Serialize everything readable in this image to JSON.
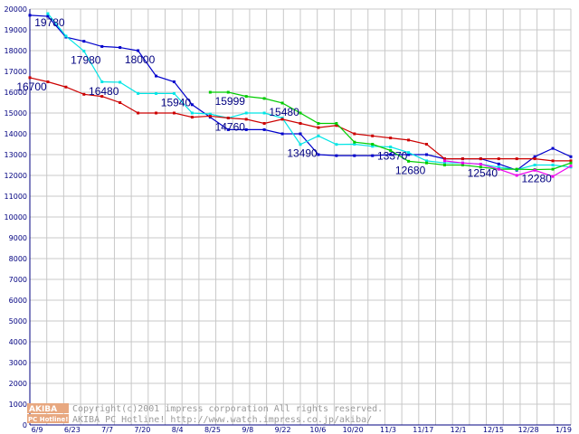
{
  "chart_data": {
    "type": "line",
    "title": "",
    "xlabel": "",
    "ylabel": "",
    "ylim": [
      0,
      20000
    ],
    "yticks": [
      0,
      1000,
      2000,
      3000,
      4000,
      5000,
      6000,
      7000,
      8000,
      9000,
      10000,
      11000,
      12000,
      13000,
      14000,
      15000,
      16000,
      17000,
      18000,
      19000,
      20000
    ],
    "grid": true,
    "categories": [
      "6/9",
      "6/23",
      "7/7",
      "7/20",
      "8/4",
      "8/25",
      "9/8",
      "9/22",
      "10/6",
      "10/20",
      "11/3",
      "11/17",
      "12/1",
      "12/15",
      "12/28",
      "1/19"
    ],
    "series": [
      {
        "color": "#0000cc",
        "values": [
          [
            0,
            19700
          ],
          [
            1,
            19650
          ],
          [
            2,
            18650
          ],
          [
            3,
            18450
          ],
          [
            4,
            18200
          ],
          [
            5,
            18150
          ],
          [
            6,
            18000
          ],
          [
            7,
            16780
          ],
          [
            8,
            16500
          ],
          [
            9,
            15400
          ],
          [
            10,
            14800
          ],
          [
            11,
            14200
          ],
          [
            12,
            14200
          ],
          [
            13,
            14200
          ],
          [
            14,
            14000
          ],
          [
            15,
            14000
          ],
          [
            16,
            13000
          ],
          [
            17,
            12950
          ],
          [
            18,
            12950
          ],
          [
            19,
            12950
          ],
          [
            20,
            13000
          ],
          [
            21,
            13000
          ],
          [
            22,
            13000
          ],
          [
            23,
            12800
          ],
          [
            24,
            12800
          ],
          [
            25,
            12800
          ],
          [
            26,
            12550
          ],
          [
            27,
            12250
          ],
          [
            28,
            12900
          ],
          [
            29,
            13300
          ],
          [
            30,
            12900
          ]
        ]
      },
      {
        "color": "#00e5e5",
        "values": [
          [
            1,
            19780
          ],
          [
            2,
            18700
          ],
          [
            3,
            17980
          ],
          [
            4,
            16500
          ],
          [
            5,
            16480
          ],
          [
            6,
            15940
          ],
          [
            7,
            15940
          ],
          [
            8,
            15940
          ],
          [
            9,
            15000
          ],
          [
            10,
            14950
          ],
          [
            11,
            14760
          ],
          [
            12,
            15000
          ],
          [
            13,
            15000
          ],
          [
            14,
            14760
          ],
          [
            15,
            13490
          ],
          [
            16,
            13900
          ],
          [
            17,
            13490
          ],
          [
            18,
            13500
          ],
          [
            19,
            13400
          ],
          [
            20,
            13370
          ],
          [
            21,
            13100
          ],
          [
            22,
            12700
          ],
          [
            23,
            12600
          ],
          [
            24,
            12600
          ],
          [
            25,
            12540
          ],
          [
            26,
            12400
          ],
          [
            27,
            12280
          ],
          [
            28,
            12500
          ],
          [
            29,
            12500
          ],
          [
            30,
            12400
          ]
        ]
      },
      {
        "color": "#cc0000",
        "values": [
          [
            0,
            16700
          ],
          [
            1,
            16500
          ],
          [
            2,
            16250
          ],
          [
            3,
            15900
          ],
          [
            4,
            15800
          ],
          [
            5,
            15500
          ],
          [
            6,
            15000
          ],
          [
            7,
            15000
          ],
          [
            8,
            15000
          ],
          [
            9,
            14800
          ],
          [
            10,
            14850
          ],
          [
            11,
            14760
          ],
          [
            12,
            14700
          ],
          [
            13,
            14500
          ],
          [
            14,
            14700
          ],
          [
            15,
            14500
          ],
          [
            16,
            14300
          ],
          [
            17,
            14400
          ],
          [
            18,
            14000
          ],
          [
            19,
            13900
          ],
          [
            20,
            13800
          ],
          [
            21,
            13700
          ],
          [
            22,
            13500
          ],
          [
            23,
            12800
          ],
          [
            24,
            12800
          ],
          [
            25,
            12800
          ],
          [
            26,
            12800
          ],
          [
            27,
            12800
          ],
          [
            28,
            12800
          ],
          [
            29,
            12700
          ],
          [
            30,
            12700
          ]
        ]
      },
      {
        "color": "#00cc00",
        "values": [
          [
            10,
            15999
          ],
          [
            11,
            15999
          ],
          [
            12,
            15800
          ],
          [
            13,
            15700
          ],
          [
            14,
            15480
          ],
          [
            15,
            15000
          ],
          [
            16,
            14500
          ],
          [
            17,
            14500
          ],
          [
            18,
            13600
          ],
          [
            19,
            13500
          ],
          [
            20,
            13200
          ],
          [
            21,
            12680
          ],
          [
            22,
            12600
          ],
          [
            23,
            12500
          ],
          [
            24,
            12500
          ],
          [
            25,
            12400
          ],
          [
            26,
            12300
          ],
          [
            27,
            12300
          ],
          [
            28,
            12280
          ],
          [
            29,
            12300
          ],
          [
            30,
            12600
          ]
        ]
      },
      {
        "color": "#ee00ee",
        "values": [
          [
            23,
            12700
          ],
          [
            24,
            12600
          ],
          [
            25,
            12540
          ],
          [
            26,
            12300
          ],
          [
            27,
            12000
          ],
          [
            28,
            12250
          ],
          [
            29,
            11950
          ],
          [
            30,
            12450
          ]
        ]
      }
    ],
    "annotations": [
      {
        "text": "19780",
        "x": 1,
        "y": 19780
      },
      {
        "text": "17980",
        "x": 3,
        "y": 17980
      },
      {
        "text": "18000",
        "x": 6,
        "y": 18000
      },
      {
        "text": "16700",
        "x": 0,
        "y": 16700
      },
      {
        "text": "16480",
        "x": 4,
        "y": 16480
      },
      {
        "text": "15940",
        "x": 8,
        "y": 15940
      },
      {
        "text": "15999",
        "x": 11,
        "y": 15999
      },
      {
        "text": "15480",
        "x": 14,
        "y": 15480
      },
      {
        "text": "14760",
        "x": 11,
        "y": 14760
      },
      {
        "text": "13490",
        "x": 15,
        "y": 13490
      },
      {
        "text": "13370",
        "x": 20,
        "y": 13370
      },
      {
        "text": "12680",
        "x": 21,
        "y": 12680
      },
      {
        "text": "12540",
        "x": 25,
        "y": 12540
      },
      {
        "text": "12280",
        "x": 28,
        "y": 12280
      }
    ],
    "x_positions": 31
  },
  "watermark": {
    "logo_top": "AKIBA",
    "logo_bottom": "PC Hotline!",
    "line1": "Copyright(c)2001 impress corporation All rights reserved.",
    "line2": "AKIBA PC Hotline!  http://www.watch.impress.co.jp/akiba/"
  }
}
